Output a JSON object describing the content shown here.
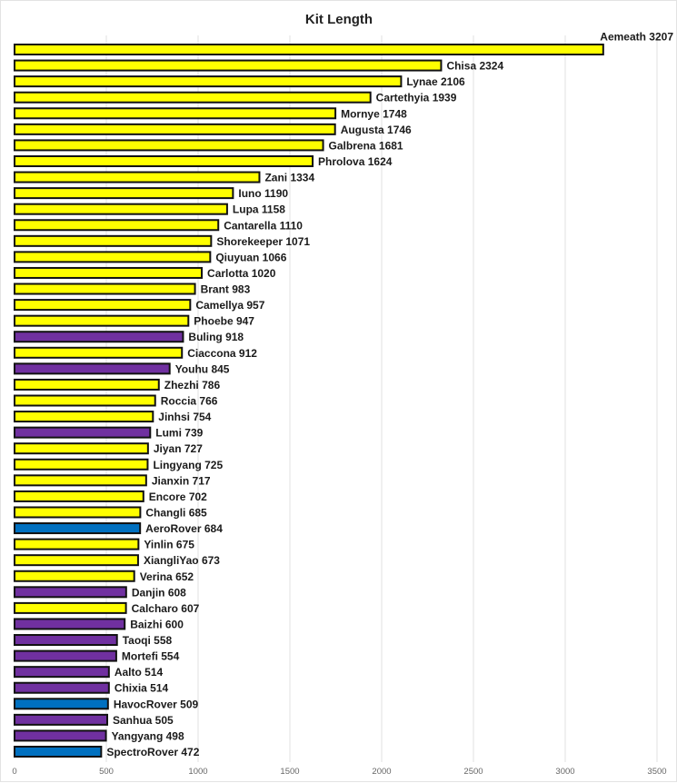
{
  "chart_data": {
    "type": "bar",
    "orientation": "horizontal",
    "title": "Kit Length",
    "xlabel": "",
    "ylabel": "",
    "xlim": [
      0,
      3500
    ],
    "x_ticks": [
      0,
      500,
      1000,
      1500,
      2000,
      2500,
      3000,
      3500
    ],
    "grid": true,
    "legend": "none",
    "colors": {
      "yellow": "#ffff00",
      "purple": "#7030a0",
      "blue": "#0070c0",
      "outline": "#111111",
      "grid": "#e2e2e2"
    },
    "bars": [
      {
        "name": "Aemeath",
        "value": 3207,
        "color": "yellow"
      },
      {
        "name": "Chisa",
        "value": 2324,
        "color": "yellow"
      },
      {
        "name": "Lynae",
        "value": 2106,
        "color": "yellow"
      },
      {
        "name": "Cartethyia",
        "value": 1939,
        "color": "yellow"
      },
      {
        "name": "Mornye",
        "value": 1748,
        "color": "yellow"
      },
      {
        "name": "Augusta",
        "value": 1746,
        "color": "yellow"
      },
      {
        "name": "Galbrena",
        "value": 1681,
        "color": "yellow"
      },
      {
        "name": "Phrolova",
        "value": 1624,
        "color": "yellow"
      },
      {
        "name": "Zani",
        "value": 1334,
        "color": "yellow"
      },
      {
        "name": "Iuno",
        "value": 1190,
        "color": "yellow"
      },
      {
        "name": "Lupa",
        "value": 1158,
        "color": "yellow"
      },
      {
        "name": "Cantarella",
        "value": 1110,
        "color": "yellow"
      },
      {
        "name": "Shorekeeper",
        "value": 1071,
        "color": "yellow"
      },
      {
        "name": "Qiuyuan",
        "value": 1066,
        "color": "yellow"
      },
      {
        "name": "Carlotta",
        "value": 1020,
        "color": "yellow"
      },
      {
        "name": "Brant",
        "value": 983,
        "color": "yellow"
      },
      {
        "name": "Camellya",
        "value": 957,
        "color": "yellow"
      },
      {
        "name": "Phoebe",
        "value": 947,
        "color": "yellow"
      },
      {
        "name": "Buling",
        "value": 918,
        "color": "purple"
      },
      {
        "name": "Ciaccona",
        "value": 912,
        "color": "yellow"
      },
      {
        "name": "Youhu",
        "value": 845,
        "color": "purple"
      },
      {
        "name": "Zhezhi",
        "value": 786,
        "color": "yellow"
      },
      {
        "name": "Roccia",
        "value": 766,
        "color": "yellow"
      },
      {
        "name": "Jinhsi",
        "value": 754,
        "color": "yellow"
      },
      {
        "name": "Lumi",
        "value": 739,
        "color": "purple"
      },
      {
        "name": "Jiyan",
        "value": 727,
        "color": "yellow"
      },
      {
        "name": "Lingyang",
        "value": 725,
        "color": "yellow"
      },
      {
        "name": "Jianxin",
        "value": 717,
        "color": "yellow"
      },
      {
        "name": "Encore",
        "value": 702,
        "color": "yellow"
      },
      {
        "name": "Changli",
        "value": 685,
        "color": "yellow"
      },
      {
        "name": "AeroRover",
        "value": 684,
        "color": "blue"
      },
      {
        "name": "Yinlin",
        "value": 675,
        "color": "yellow"
      },
      {
        "name": "XiangliYao",
        "value": 673,
        "color": "yellow"
      },
      {
        "name": "Verina",
        "value": 652,
        "color": "yellow"
      },
      {
        "name": "Danjin",
        "value": 608,
        "color": "purple"
      },
      {
        "name": "Calcharo",
        "value": 607,
        "color": "yellow"
      },
      {
        "name": "Baizhi",
        "value": 600,
        "color": "purple"
      },
      {
        "name": "Taoqi",
        "value": 558,
        "color": "purple"
      },
      {
        "name": "Mortefi",
        "value": 554,
        "color": "purple"
      },
      {
        "name": "Aalto",
        "value": 514,
        "color": "purple"
      },
      {
        "name": "Chixia",
        "value": 514,
        "color": "purple"
      },
      {
        "name": "HavocRover",
        "value": 509,
        "color": "blue"
      },
      {
        "name": "Sanhua",
        "value": 505,
        "color": "purple"
      },
      {
        "name": "Yangyang",
        "value": 498,
        "color": "purple"
      },
      {
        "name": "SpectroRover",
        "value": 472,
        "color": "blue"
      }
    ]
  }
}
